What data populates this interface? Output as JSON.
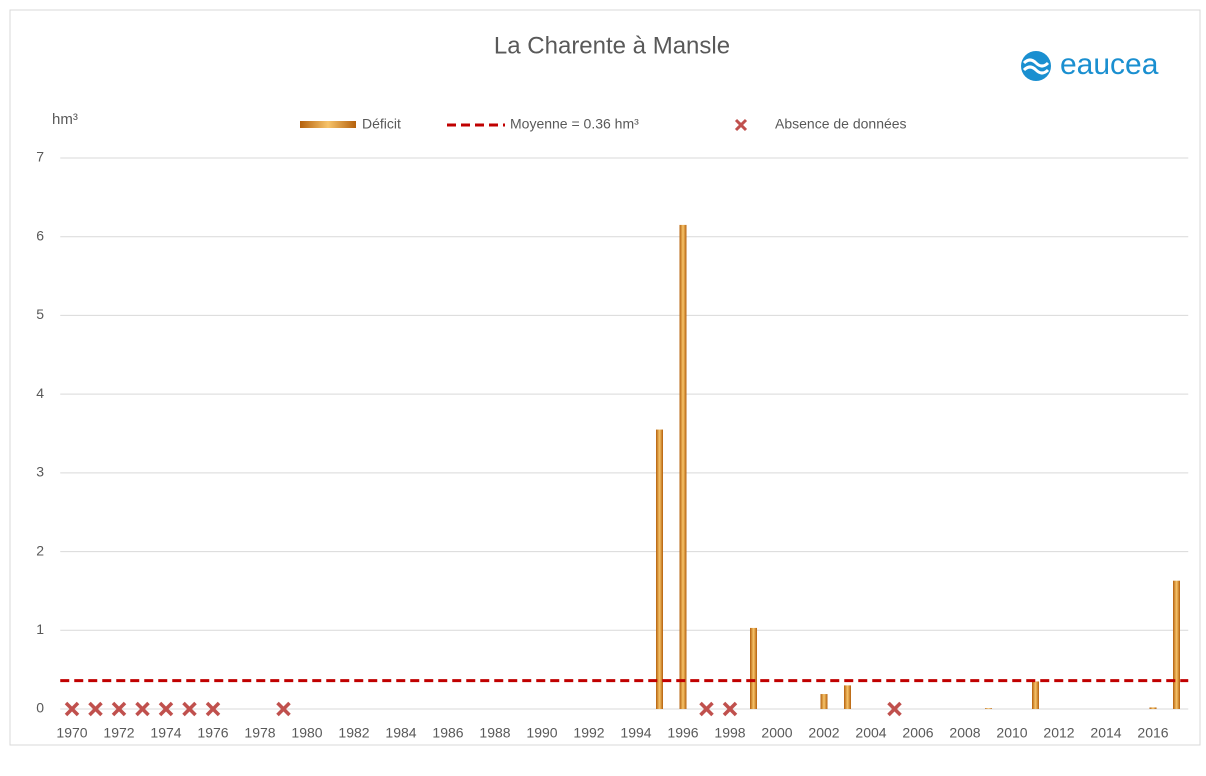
{
  "chart_data": {
    "type": "bar",
    "title": "La Charente à Mansle",
    "logo": "eaucea",
    "y_label": "hm³",
    "categories": [
      "1970",
      null,
      "1972",
      null,
      "1974",
      null,
      "1976",
      null,
      "1978",
      null,
      "1980",
      null,
      "1982",
      null,
      "1984",
      null,
      "1986",
      null,
      "1988",
      null,
      "1990",
      null,
      "1992",
      null,
      "1994",
      null,
      "1996",
      null,
      "1998",
      null,
      "2000",
      null,
      "2002",
      null,
      "2004",
      null,
      "2006",
      null,
      "2008",
      null,
      "2010",
      null,
      "2012",
      null,
      "2014",
      null,
      "2016",
      null
    ],
    "series": [
      {
        "name": "Déficit",
        "color": "#e08a1e",
        "values": [
          null,
          null,
          null,
          null,
          null,
          null,
          null,
          0,
          0,
          null,
          0,
          0,
          0,
          0,
          0,
          0,
          0,
          0,
          0,
          0,
          0,
          0,
          0,
          0,
          0,
          3.55,
          6.15,
          null,
          null,
          1.03,
          0,
          0,
          0.19,
          0.3,
          0,
          null,
          0,
          0,
          0,
          0.01,
          0,
          0.35,
          0,
          0,
          0,
          0,
          0.02,
          1.63
        ]
      },
      {
        "name": "Absence de données",
        "color": "#c0504d",
        "type": "scatter",
        "values": [
          0,
          0,
          0,
          0,
          0,
          0,
          0,
          null,
          null,
          0,
          null,
          null,
          null,
          null,
          null,
          null,
          null,
          null,
          null,
          null,
          null,
          null,
          null,
          null,
          null,
          null,
          null,
          0,
          0,
          null,
          null,
          null,
          null,
          null,
          null,
          0,
          null,
          null,
          null,
          null,
          null,
          null,
          null,
          null,
          null,
          null,
          null,
          null
        ]
      }
    ],
    "mean": {
      "label": "Moyenne = 0.36 hm³",
      "value": 0.36,
      "color": "#c00000"
    },
    "ylim": [
      0,
      7
    ],
    "yticks": [
      0,
      1,
      2,
      3,
      4,
      5,
      6,
      7
    ],
    "grid": true,
    "legend": "top"
  }
}
